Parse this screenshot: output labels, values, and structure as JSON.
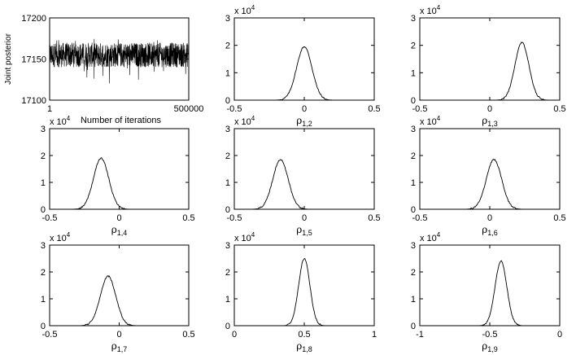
{
  "figure": {
    "trace_panel": {
      "type": "line",
      "ylabel": "Joint posterior",
      "xlabel": "Number of iterations",
      "xlim": [
        1,
        500000
      ],
      "ylim": [
        17100,
        17200
      ],
      "x_ticks": [
        "1",
        "500000"
      ],
      "y_ticks": [
        "17100",
        "17150",
        "17200"
      ],
      "trace_center": 17155,
      "trace_band": [
        17140,
        17170
      ],
      "trace_extremes": [
        17120,
        17175
      ]
    },
    "histogram_panels": [
      {
        "var": "ρ",
        "sub": "1,2",
        "exponent_label": "x 10",
        "exponent": "4",
        "xlim": [
          -0.5,
          0.5
        ],
        "x_ticks": [
          "-0.5",
          "0",
          "0.5"
        ],
        "ylim": [
          0,
          30000
        ],
        "y_ticks": [
          "0",
          "1",
          "2",
          "3"
        ],
        "peak_x": 0.0,
        "peak_y": 19500,
        "spread": 0.055
      },
      {
        "var": "ρ",
        "sub": "1,3",
        "exponent_label": "x 10",
        "exponent": "4",
        "xlim": [
          -0.5,
          0.5
        ],
        "x_ticks": [
          "-0.5",
          "0",
          "0.5"
        ],
        "ylim": [
          0,
          30000
        ],
        "y_ticks": [
          "0",
          "1",
          "2",
          "3"
        ],
        "peak_x": 0.23,
        "peak_y": 21000,
        "spread": 0.05
      },
      {
        "var": "ρ",
        "sub": "1,4",
        "exponent_label": "x 10",
        "exponent": "4",
        "xlim": [
          -0.5,
          0.5
        ],
        "x_ticks": [
          "-0.5",
          "0",
          "0.5"
        ],
        "ylim": [
          0,
          30000
        ],
        "y_ticks": [
          "0",
          "1",
          "2",
          "3"
        ],
        "peak_x": -0.13,
        "peak_y": 19000,
        "spread": 0.055
      },
      {
        "var": "ρ",
        "sub": "1,5",
        "exponent_label": "x 10",
        "exponent": "4",
        "xlim": [
          -0.5,
          0.5
        ],
        "x_ticks": [
          "-0.5",
          "0",
          "0.5"
        ],
        "ylim": [
          0,
          30000
        ],
        "y_ticks": [
          "0",
          "1",
          "2",
          "3"
        ],
        "peak_x": -0.17,
        "peak_y": 18500,
        "spread": 0.055
      },
      {
        "var": "ρ",
        "sub": "1,6",
        "exponent_label": "x 10",
        "exponent": "4",
        "xlim": [
          -0.5,
          0.5
        ],
        "x_ticks": [
          "-0.5",
          "0",
          "0.5"
        ],
        "ylim": [
          0,
          30000
        ],
        "y_ticks": [
          "0",
          "1",
          "2",
          "3"
        ],
        "peak_x": 0.03,
        "peak_y": 18500,
        "spread": 0.055
      },
      {
        "var": "ρ",
        "sub": "1,7",
        "exponent_label": "x 10",
        "exponent": "4",
        "xlim": [
          -0.5,
          0.5
        ],
        "x_ticks": [
          "-0.5",
          "0",
          "0.5"
        ],
        "ylim": [
          0,
          30000
        ],
        "y_ticks": [
          "0",
          "1",
          "2",
          "3"
        ],
        "peak_x": -0.08,
        "peak_y": 18500,
        "spread": 0.055
      },
      {
        "var": "ρ",
        "sub": "1,8",
        "exponent_label": "x 10",
        "exponent": "4",
        "xlim": [
          0,
          1
        ],
        "x_ticks": [
          "0",
          "0.5",
          "1"
        ],
        "ylim": [
          0,
          30000
        ],
        "y_ticks": [
          "0",
          "1",
          "2",
          "3"
        ],
        "peak_x": 0.5,
        "peak_y": 25000,
        "spread": 0.04
      },
      {
        "var": "ρ",
        "sub": "1,9",
        "exponent_label": "x 10",
        "exponent": "4",
        "xlim": [
          -1,
          0
        ],
        "x_ticks": [
          "-1",
          "-0.5",
          "0"
        ],
        "ylim": [
          0,
          30000
        ],
        "y_ticks": [
          "0",
          "1",
          "2",
          "3"
        ],
        "peak_x": -0.42,
        "peak_y": 24000,
        "spread": 0.042
      }
    ]
  },
  "chart_data": [
    {
      "type": "line",
      "ylabel": "Joint posterior",
      "xlabel": "Number of iterations",
      "xlim": [
        1,
        500000
      ],
      "ylim": [
        17100,
        17200
      ]
    },
    {
      "type": "line",
      "xlabel": "ρ1,2",
      "xlim": [
        -0.5,
        0.5
      ],
      "ylim": [
        0,
        30000
      ],
      "peak": [
        0.0,
        19500
      ]
    },
    {
      "type": "line",
      "xlabel": "ρ1,3",
      "xlim": [
        -0.5,
        0.5
      ],
      "ylim": [
        0,
        30000
      ],
      "peak": [
        0.23,
        21000
      ]
    },
    {
      "type": "line",
      "xlabel": "ρ1,4",
      "xlim": [
        -0.5,
        0.5
      ],
      "ylim": [
        0,
        30000
      ],
      "peak": [
        -0.13,
        19000
      ]
    },
    {
      "type": "line",
      "xlabel": "ρ1,5",
      "xlim": [
        -0.5,
        0.5
      ],
      "ylim": [
        0,
        30000
      ],
      "peak": [
        -0.17,
        18500
      ]
    },
    {
      "type": "line",
      "xlabel": "ρ1,6",
      "xlim": [
        -0.5,
        0.5
      ],
      "ylim": [
        0,
        30000
      ],
      "peak": [
        0.03,
        18500
      ]
    },
    {
      "type": "line",
      "xlabel": "ρ1,7",
      "xlim": [
        -0.5,
        0.5
      ],
      "ylim": [
        0,
        30000
      ],
      "peak": [
        -0.08,
        18500
      ]
    },
    {
      "type": "line",
      "xlabel": "ρ1,8",
      "xlim": [
        0,
        1
      ],
      "ylim": [
        0,
        30000
      ],
      "peak": [
        0.5,
        25000
      ]
    },
    {
      "type": "line",
      "xlabel": "ρ1,9",
      "xlim": [
        -1,
        0
      ],
      "ylim": [
        0,
        30000
      ],
      "peak": [
        -0.42,
        24000
      ]
    }
  ]
}
